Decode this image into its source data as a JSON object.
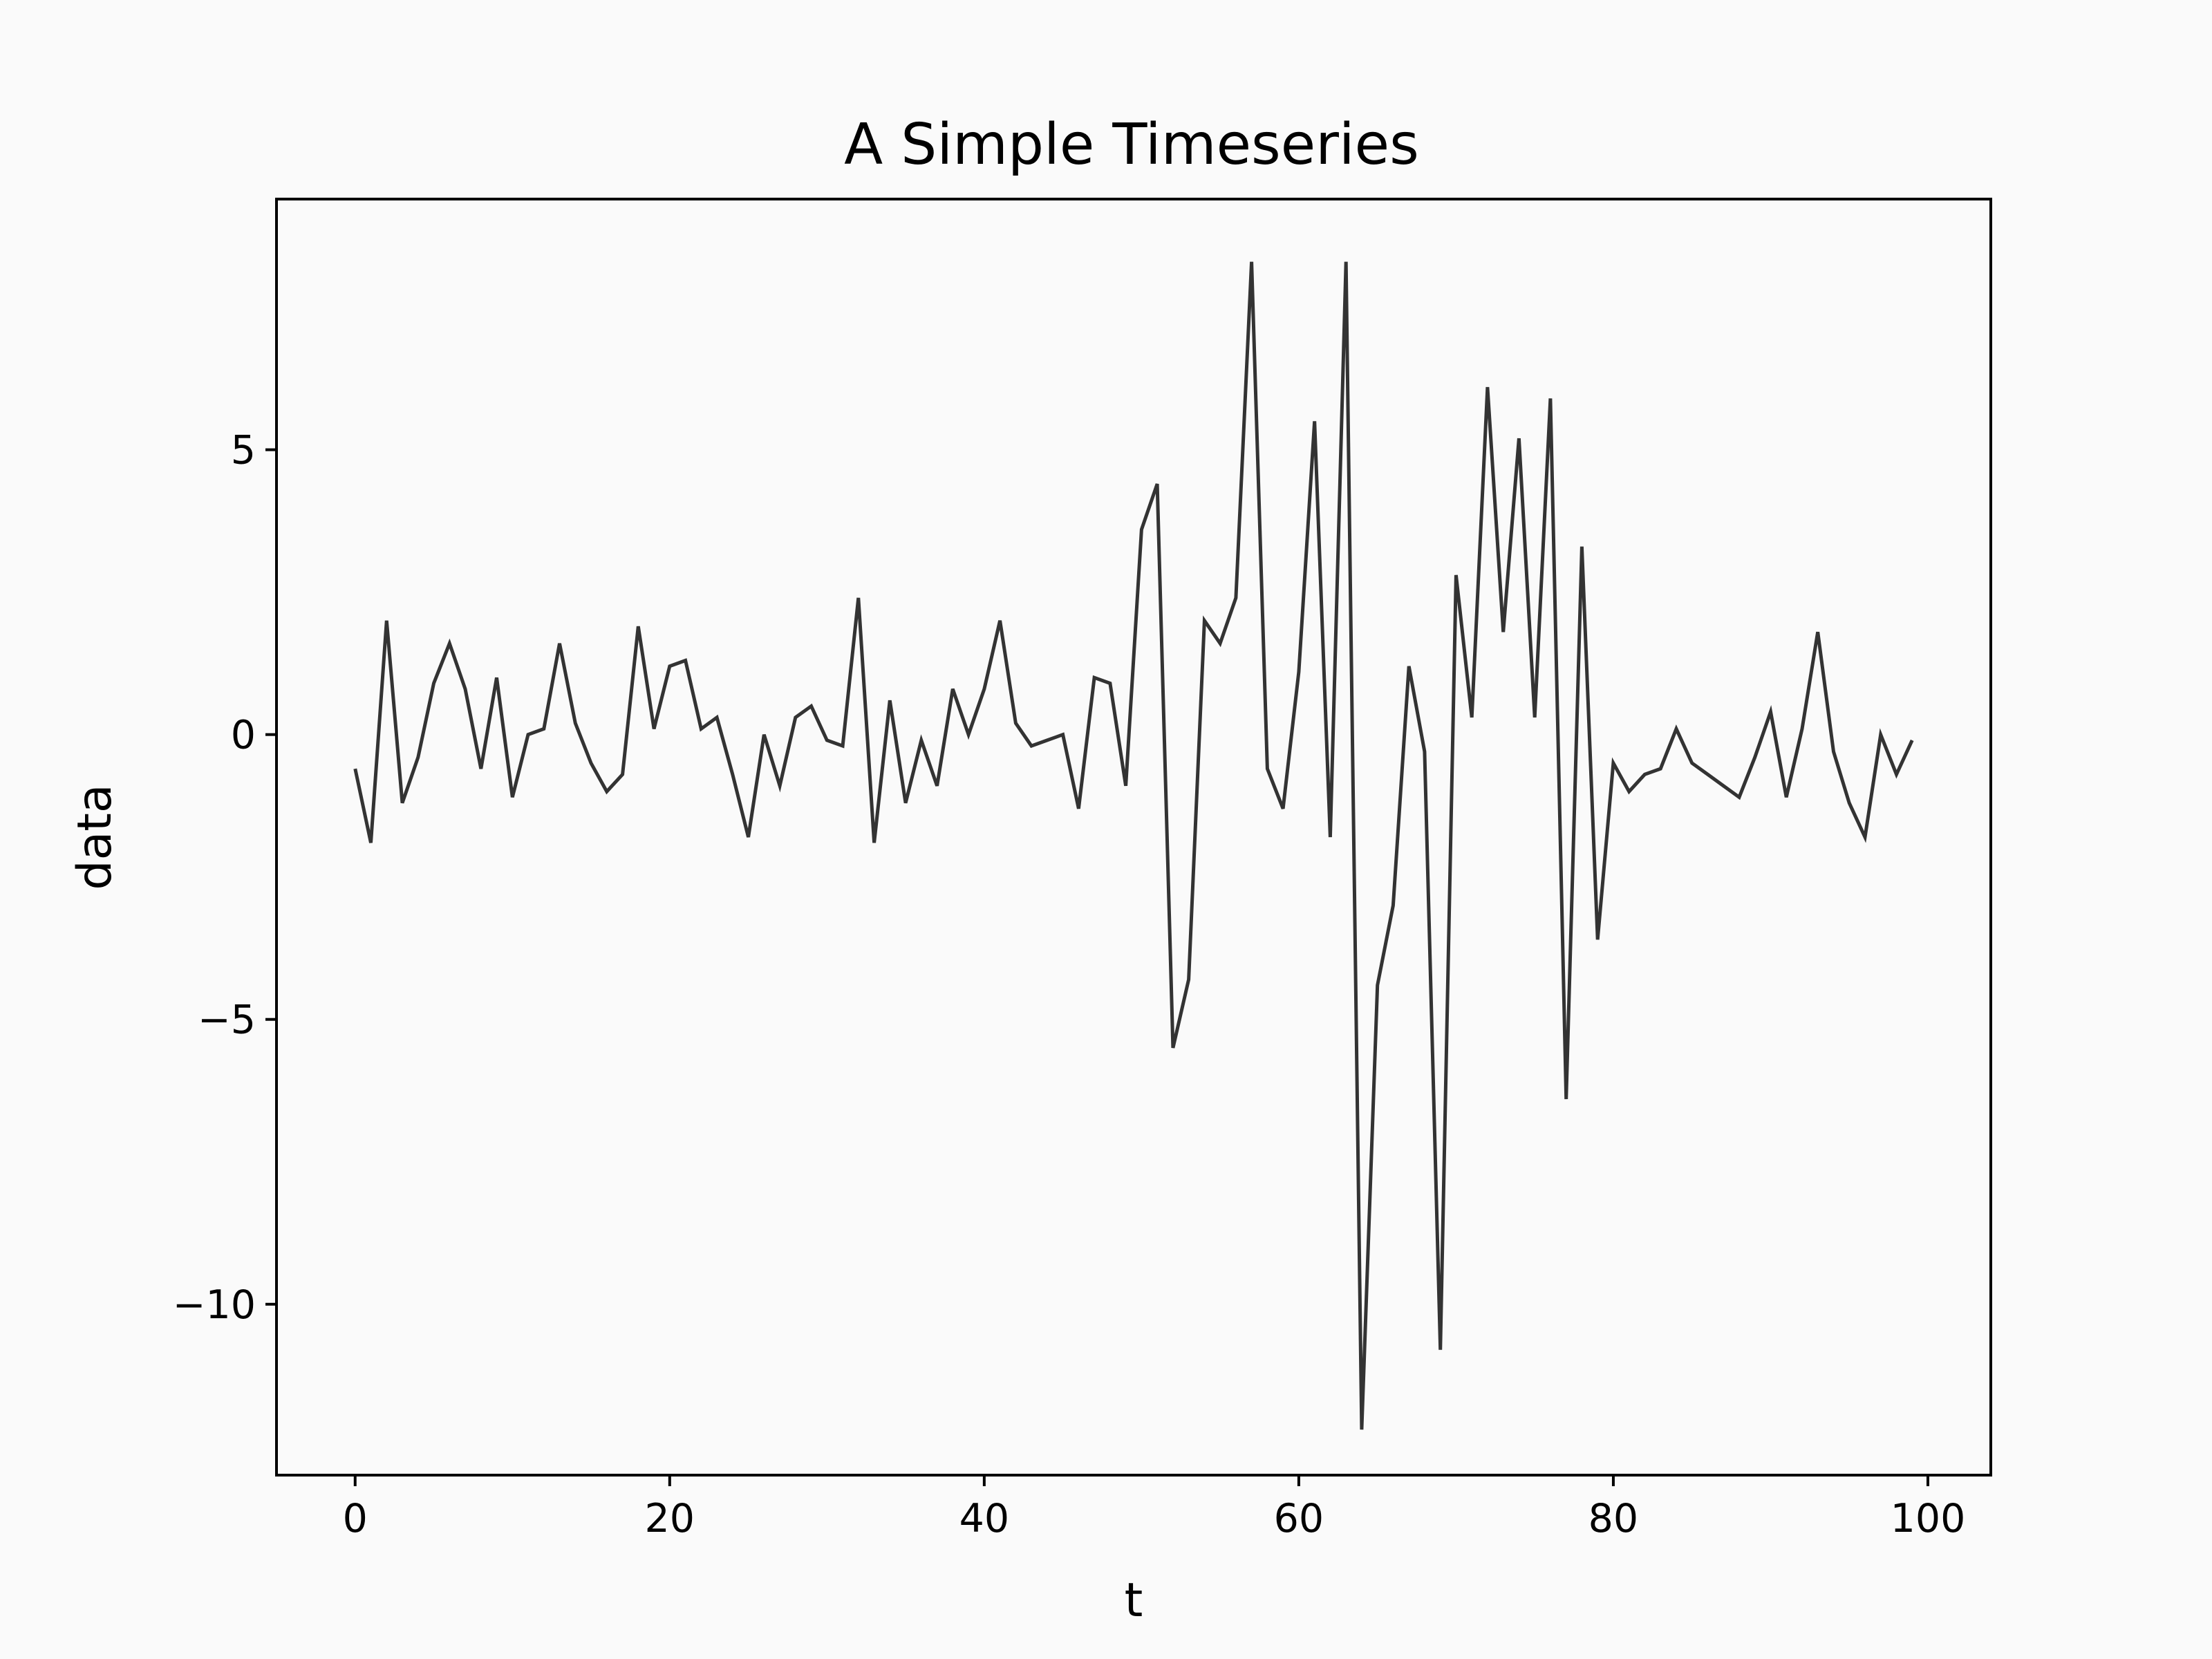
{
  "chart_data": {
    "type": "line",
    "title": "A Simple Timeseries",
    "xlabel": "t",
    "ylabel": "data",
    "xlim": [
      -5,
      104
    ],
    "ylim": [
      -13,
      9.4
    ],
    "x_ticks": [
      0,
      20,
      40,
      60,
      80,
      100
    ],
    "x_tick_labels": [
      "0",
      "20",
      "40",
      "60",
      "80",
      "100"
    ],
    "y_ticks": [
      5,
      0,
      -5,
      -10
    ],
    "y_tick_labels": [
      "5",
      "0",
      "−5",
      "−10"
    ],
    "grid": false,
    "legend": "none",
    "line_color": "#333333",
    "series": [
      {
        "x": [
          0,
          1,
          2,
          3,
          4,
          5,
          6,
          7,
          8,
          9,
          10,
          11,
          12,
          13,
          14,
          15,
          16,
          17,
          18,
          19,
          20,
          21,
          22,
          23,
          24,
          25,
          26,
          27,
          28,
          29,
          30,
          31,
          32,
          33,
          34,
          35,
          36,
          37,
          38,
          39,
          40,
          41,
          42,
          43,
          44,
          45,
          46,
          47,
          48,
          49,
          50,
          51,
          52,
          53,
          54,
          55,
          56,
          57,
          58,
          59,
          60,
          61,
          62,
          63,
          64,
          65,
          66,
          67,
          68,
          69,
          70,
          71,
          72,
          73,
          74,
          75,
          76,
          77,
          78,
          79,
          80,
          81,
          82,
          83,
          84,
          85,
          86,
          87,
          88,
          89,
          90,
          91,
          92,
          93,
          94,
          95,
          96,
          97,
          98,
          99
        ],
        "values": [
          -0.6,
          -1.9,
          2.0,
          -1.2,
          -0.4,
          0.9,
          1.6,
          0.8,
          -0.6,
          1.0,
          -1.1,
          0.0,
          0.1,
          1.6,
          0.2,
          -0.5,
          -1.0,
          -0.7,
          1.9,
          0.1,
          1.2,
          1.3,
          0.1,
          0.3,
          -0.7,
          -1.8,
          0.0,
          -0.9,
          0.3,
          0.5,
          -0.1,
          -0.2,
          2.4,
          -1.9,
          0.6,
          -1.2,
          -0.1,
          -0.9,
          0.8,
          0.0,
          0.8,
          2.0,
          0.2,
          -0.2,
          -0.1,
          0.0,
          -1.3,
          1.0,
          0.9,
          -0.9,
          3.6,
          4.4,
          -5.5,
          -4.3,
          2.0,
          1.6,
          2.4,
          8.3,
          -0.6,
          -1.3,
          1.1,
          5.5,
          -1.8,
          8.3,
          -12.2,
          -4.4,
          -3.0,
          1.2,
          -0.3,
          -10.8,
          2.8,
          0.3,
          6.1,
          1.8,
          5.2,
          0.3,
          5.9,
          -6.4,
          3.3,
          -3.6,
          -0.5,
          -1.0,
          -0.7,
          -0.6,
          0.1,
          -0.5,
          -0.7,
          -0.9,
          -1.1,
          -0.4,
          0.4,
          -1.1,
          0.1,
          1.8,
          -0.3,
          -1.2,
          -1.8,
          0.0,
          -0.7,
          -0.1
        ]
      }
    ]
  }
}
